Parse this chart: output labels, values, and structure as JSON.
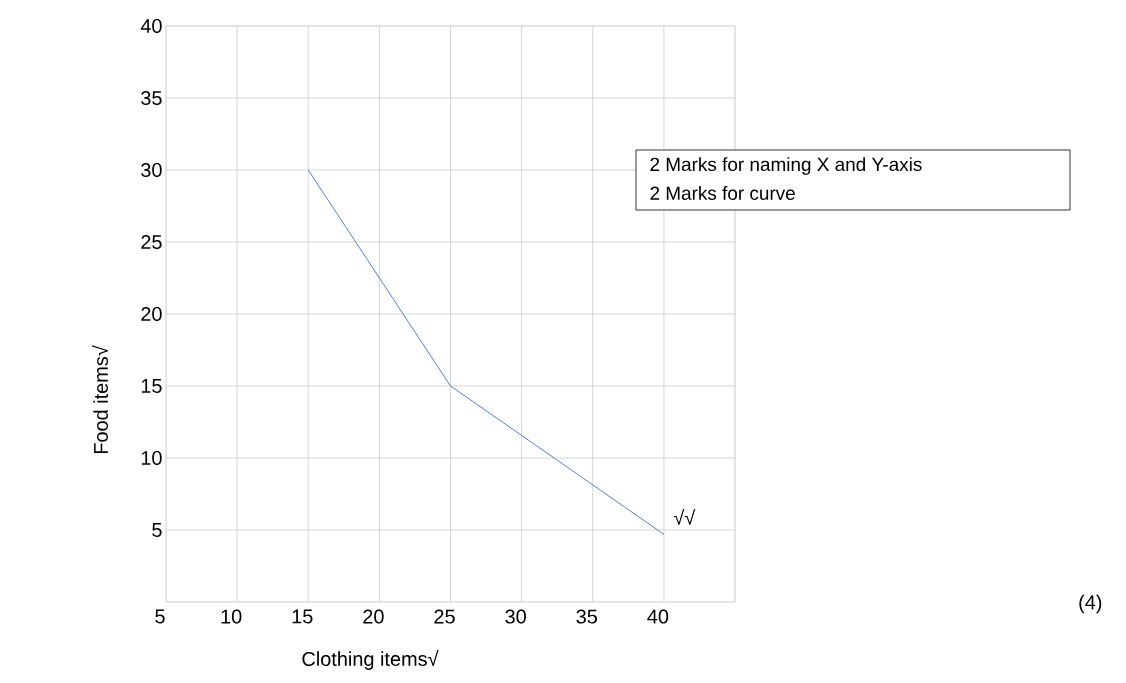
{
  "chart_data": {
    "type": "line",
    "xlabel": "Clothing items√",
    "ylabel": "Food items√",
    "x": [
      15,
      25,
      40
    ],
    "series": [
      {
        "color": "#4472c4",
        "values": [
          30,
          15,
          4.7
        ]
      }
    ],
    "xlim": [
      5,
      45
    ],
    "xticks": [
      5,
      10,
      15,
      20,
      25,
      30,
      35,
      40,
      {
        "value": 45,
        "label": null
      }
    ],
    "ylim": [
      0,
      40
    ],
    "yticks": [
      {
        "value": 0,
        "label": null
      },
      5,
      10,
      15,
      20,
      25,
      30,
      35,
      40
    ],
    "grid": true,
    "annotations": [
      "2 Marks for naming X and Y-axis",
      "2 Marks for curve",
      {
        "text": "√√",
        "x": 40,
        "y": 4.7
      },
      "(4)"
    ]
  }
}
